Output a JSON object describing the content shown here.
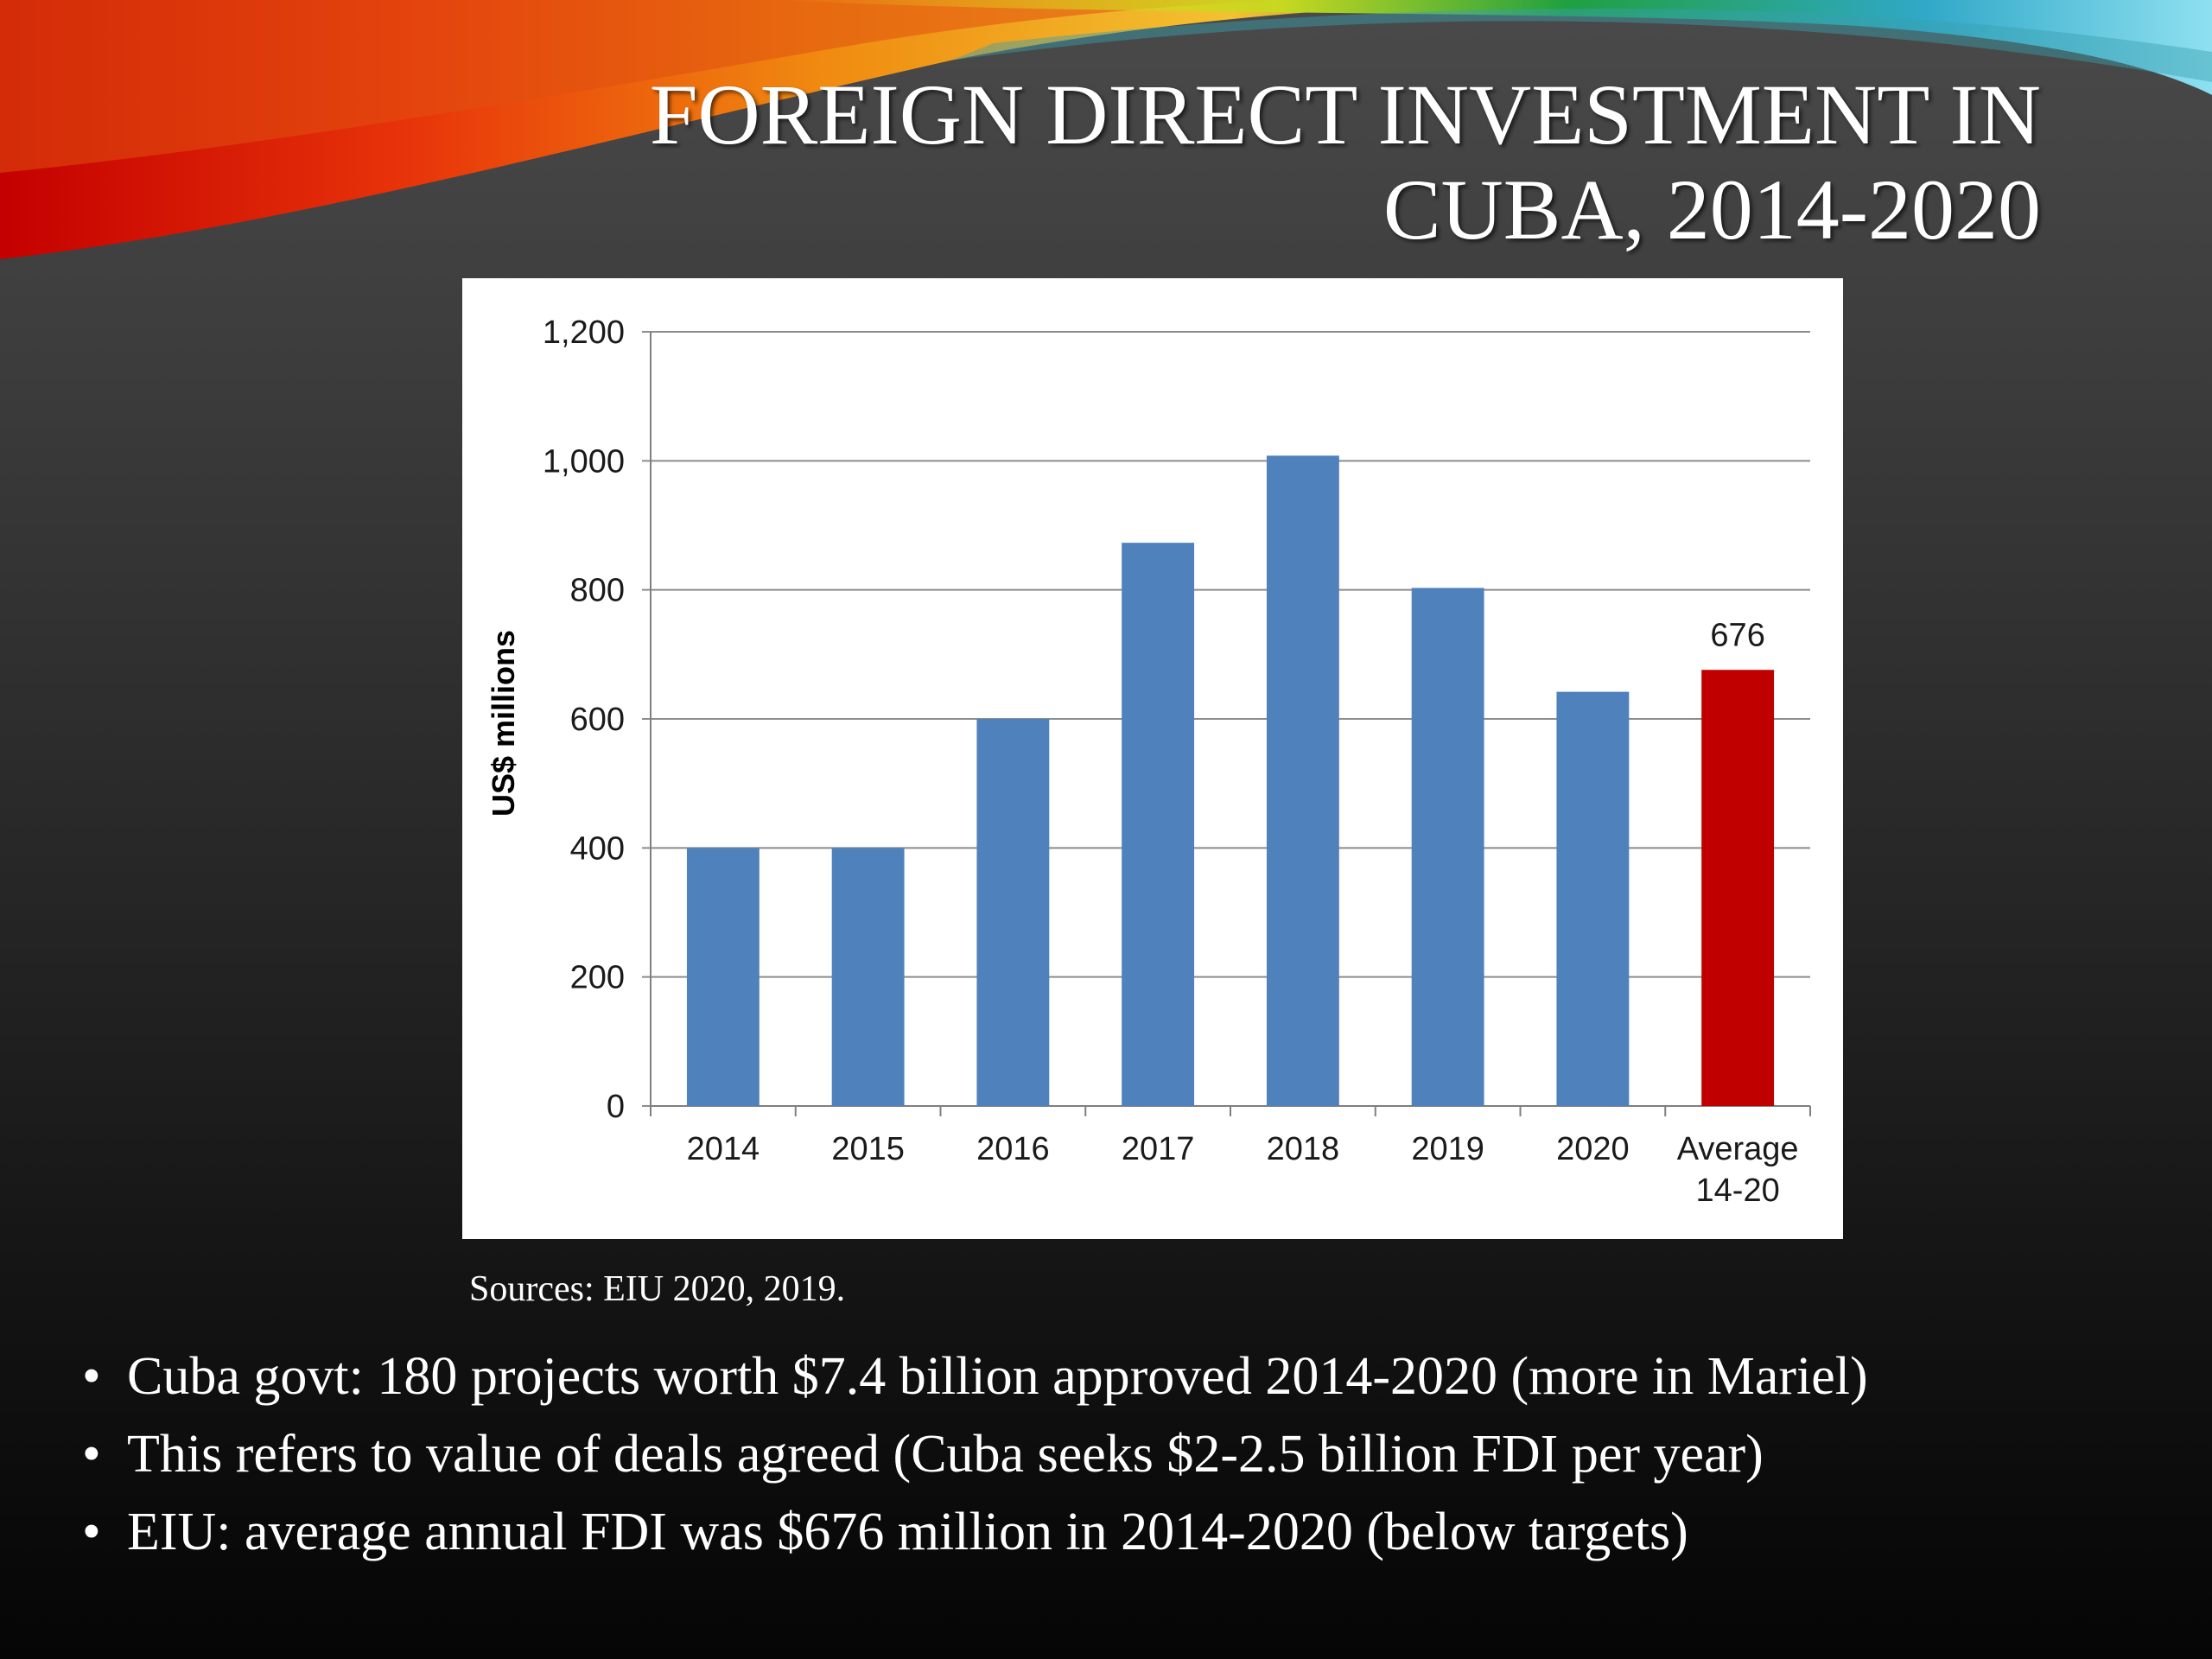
{
  "slide": {
    "title_line1": "FOREIGN DIRECT INVESTMENT IN",
    "title_line2": "CUBA, 2014-2020",
    "sources": "Sources: EIU 2020, 2019.",
    "bullets": [
      "Cuba govt: 180 projects worth $7.4 billion approved 2014-2020 (more in Mariel)",
      "This refers to value of deals agreed (Cuba seeks $2-2.5 billion FDI per year)",
      "EIU: average annual FDI was $676 million in 2014-2020 (below targets)"
    ],
    "bullet_glyph": "•"
  },
  "colors": {
    "bar_primary": "#4f81bd",
    "bar_highlight": "#c00000",
    "gridline": "#8c8c8c"
  },
  "chart_data": {
    "type": "bar",
    "title": "",
    "xlabel": "",
    "ylabel": "US$ millions",
    "categories": [
      [
        "2014"
      ],
      [
        "2015"
      ],
      [
        "2016"
      ],
      [
        "2017"
      ],
      [
        "2018"
      ],
      [
        "2019"
      ],
      [
        "2020"
      ],
      [
        "Average",
        "14-20"
      ]
    ],
    "values": [
      400,
      400,
      600,
      873,
      1008,
      803,
      642,
      676
    ],
    "highlight_index": 7,
    "data_labels": [
      null,
      null,
      null,
      null,
      null,
      null,
      null,
      "676"
    ],
    "ylim": [
      0,
      1200
    ],
    "yticks": [
      0,
      200,
      400,
      600,
      800,
      1000,
      1200
    ],
    "ytick_labels": [
      "0",
      "200",
      "400",
      "600",
      "800",
      "1,000",
      "1,200"
    ],
    "grid": true,
    "legend": "none"
  }
}
